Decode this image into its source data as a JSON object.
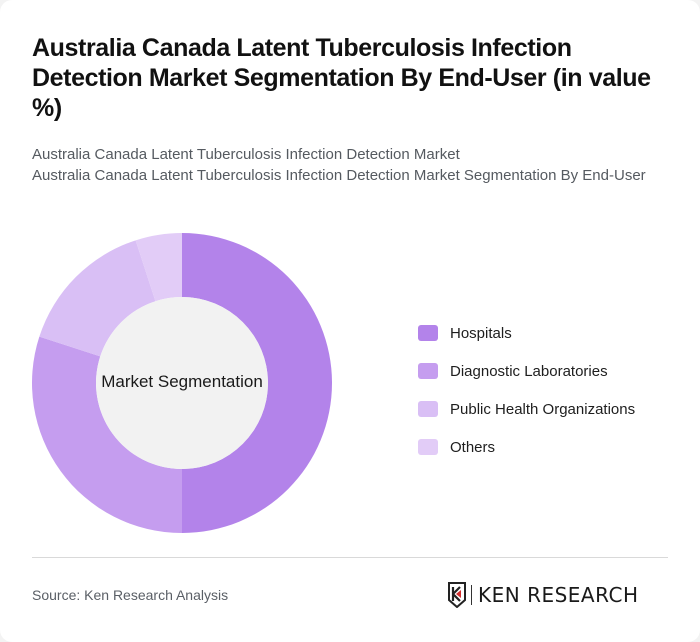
{
  "title": "Australia Canada Latent Tuberculosis Infection Detection Market Segmentation By End-User (in value %)",
  "subtitle_line1": "Australia Canada Latent Tuberculosis Infection Detection Market",
  "subtitle_line2": "Australia Canada Latent Tuberculosis Infection Detection Market Segmentation By End-User",
  "center_label": "Market Segmentation",
  "legend": [
    {
      "label": "Hospitals",
      "color": "#b383ea"
    },
    {
      "label": "Diagnostic Laboratories",
      "color": "#c59def"
    },
    {
      "label": "Public Health Organizations",
      "color": "#d9bff5"
    },
    {
      "label": "Others",
      "color": "#e2ccf7"
    }
  ],
  "footer": {
    "source": "Source: Ken Research Analysis",
    "logo_text": "KEN RESEARCH"
  },
  "chart_data": {
    "type": "pie",
    "variant": "donut",
    "title": "Australia Canada Latent Tuberculosis Infection Detection Market Segmentation By End-User (in value %)",
    "center_label": "Market Segmentation",
    "categories": [
      "Hospitals",
      "Diagnostic Laboratories",
      "Public Health Organizations",
      "Others"
    ],
    "values": [
      50,
      30,
      15,
      5
    ],
    "colors": [
      "#b383ea",
      "#c59def",
      "#d9bff5",
      "#e2ccf7"
    ],
    "unit": "%",
    "legend_position": "right"
  }
}
